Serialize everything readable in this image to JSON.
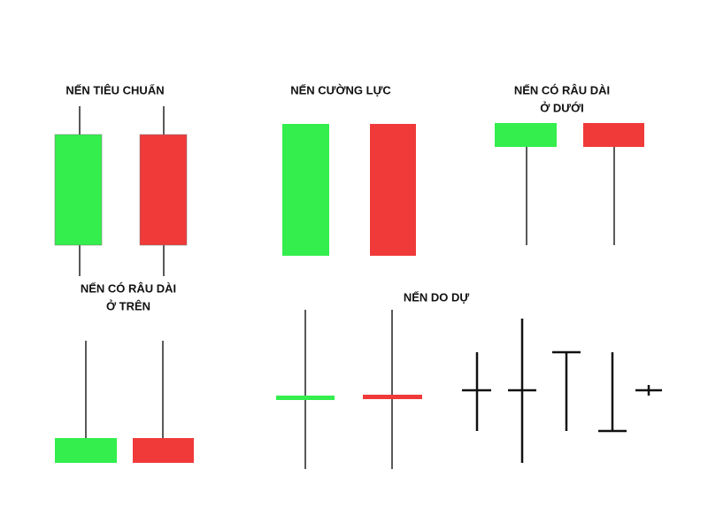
{
  "groups": [
    {
      "title": [
        "NẾN TIÊU CHUẨN"
      ]
    },
    {
      "title": [
        "NẾN CƯỜNG LỰC"
      ]
    },
    {
      "title": [
        "NẾN CÓ RÂU DÀI",
        "Ở DƯỚI"
      ]
    },
    {
      "title": [
        "NẾN CÓ RÂU DÀI",
        "Ở TRÊN"
      ]
    },
    {
      "title": [
        "NẾN DO DỰ"
      ]
    }
  ]
}
